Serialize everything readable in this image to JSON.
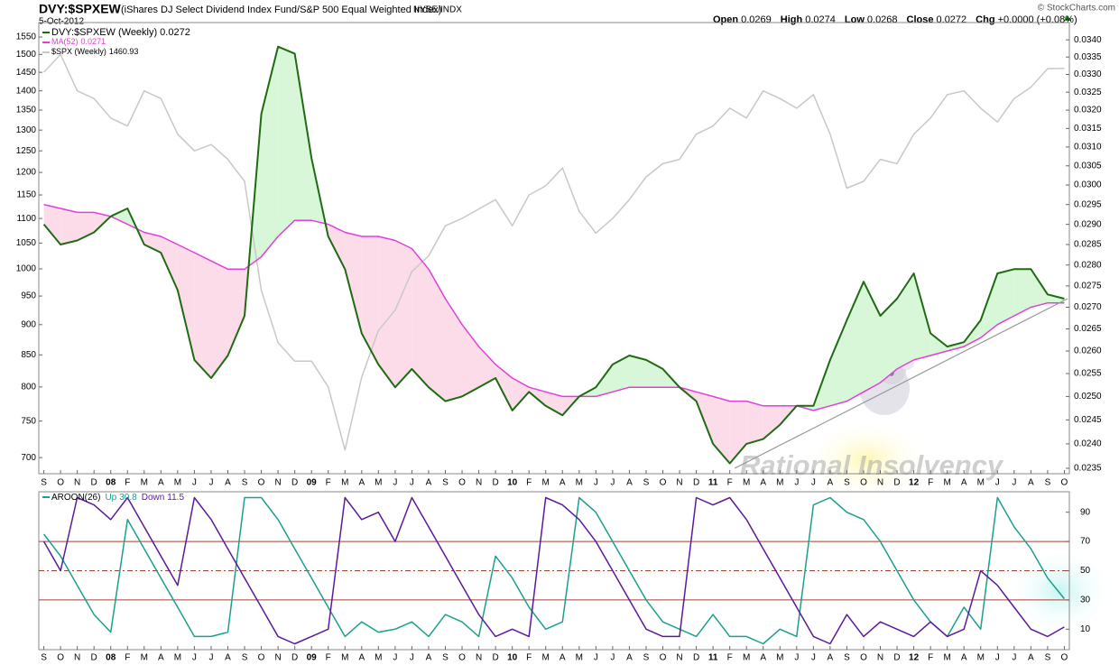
{
  "chart_data": [
    {
      "type": "line",
      "title": "DVY:$SPXEW",
      "subtitle": "(iShares DJ Select Dividend Index Fund/S&P 500 Equal Weighted Index)",
      "exchange": "NYSE/INDX",
      "date": "5-Oct-2012",
      "quote": [
        [
          "Open",
          "0.0269"
        ],
        [
          "High",
          "0.0274"
        ],
        [
          "Low",
          "0.0268"
        ],
        [
          "Close",
          "0.0272"
        ],
        [
          "Chg",
          "+0.0000 (+0.08%)"
        ]
      ],
      "credit": "© StockCharts.com",
      "watermark": "Rational Insolvency",
      "log": true,
      "x": [
        0,
        1,
        2,
        3,
        4,
        5,
        6,
        7,
        8,
        9,
        10,
        11,
        12,
        13,
        14,
        15,
        16,
        17,
        18,
        19,
        20,
        21,
        22,
        23,
        24,
        25,
        26,
        27,
        28,
        29,
        30,
        31,
        32,
        33,
        34,
        35,
        36,
        37,
        38,
        39,
        40,
        41,
        42,
        43,
        44,
        45,
        46,
        47,
        48,
        49,
        50,
        51,
        52,
        53,
        54,
        55,
        56,
        57,
        58,
        59,
        60,
        61
      ],
      "xlim": [
        -0.3,
        61.3
      ],
      "xticks": [
        {
          "value": 0,
          "label": "S"
        },
        {
          "value": 1,
          "label": "O"
        },
        {
          "value": 2,
          "label": "N"
        },
        {
          "value": 3,
          "label": "D"
        },
        {
          "value": 4,
          "label": "08"
        },
        {
          "value": 5,
          "label": "F"
        },
        {
          "value": 6,
          "label": "M"
        },
        {
          "value": 7,
          "label": "A"
        },
        {
          "value": 8,
          "label": "M"
        },
        {
          "value": 9,
          "label": "J"
        },
        {
          "value": 10,
          "label": "J"
        },
        {
          "value": 11,
          "label": "A"
        },
        {
          "value": 12,
          "label": "S"
        },
        {
          "value": 13,
          "label": "O"
        },
        {
          "value": 14,
          "label": "N"
        },
        {
          "value": 15,
          "label": "D"
        },
        {
          "value": 16,
          "label": "09"
        },
        {
          "value": 17,
          "label": "F"
        },
        {
          "value": 18,
          "label": "M"
        },
        {
          "value": 19,
          "label": "A"
        },
        {
          "value": 20,
          "label": "M"
        },
        {
          "value": 21,
          "label": "J"
        },
        {
          "value": 22,
          "label": "J"
        },
        {
          "value": 23,
          "label": "A"
        },
        {
          "value": 24,
          "label": "S"
        },
        {
          "value": 25,
          "label": "O"
        },
        {
          "value": 26,
          "label": "N"
        },
        {
          "value": 27,
          "label": "D"
        },
        {
          "value": 28,
          "label": "10"
        },
        {
          "value": 29,
          "label": "F"
        },
        {
          "value": 30,
          "label": "M"
        },
        {
          "value": 31,
          "label": "A"
        },
        {
          "value": 32,
          "label": "M"
        },
        {
          "value": 33,
          "label": "J"
        },
        {
          "value": 34,
          "label": "J"
        },
        {
          "value": 35,
          "label": "A"
        },
        {
          "value": 36,
          "label": "S"
        },
        {
          "value": 37,
          "label": "O"
        },
        {
          "value": 38,
          "label": "N"
        },
        {
          "value": 39,
          "label": "D"
        },
        {
          "value": 40,
          "label": "11"
        },
        {
          "value": 41,
          "label": "F"
        },
        {
          "value": 42,
          "label": "M"
        },
        {
          "value": 43,
          "label": "A"
        },
        {
          "value": 44,
          "label": "M"
        },
        {
          "value": 45,
          "label": "J"
        },
        {
          "value": 46,
          "label": "J"
        },
        {
          "value": 47,
          "label": "A"
        },
        {
          "value": 48,
          "label": "S"
        },
        {
          "value": 49,
          "label": "O"
        },
        {
          "value": 50,
          "label": "N"
        },
        {
          "value": 51,
          "label": "D"
        },
        {
          "value": 52,
          "label": "12"
        },
        {
          "value": 53,
          "label": "F"
        },
        {
          "value": 54,
          "label": "M"
        },
        {
          "value": 55,
          "label": "A"
        },
        {
          "value": 56,
          "label": "M"
        },
        {
          "value": 57,
          "label": "J"
        },
        {
          "value": 58,
          "label": "J"
        },
        {
          "value": 59,
          "label": "A"
        },
        {
          "value": 60,
          "label": "S"
        },
        {
          "value": 61,
          "label": "O"
        }
      ],
      "ylim": [
        679,
        1593
      ],
      "yticks": [
        700,
        750,
        800,
        850,
        900,
        950,
        1000,
        1050,
        1100,
        1150,
        1200,
        1250,
        1300,
        1350,
        1400,
        1450,
        1500,
        1550
      ],
      "y2lim": [
        0.02339,
        0.03451
      ],
      "y2ticks": [
        {
          "value": 0.0235,
          "label": "0.0235"
        },
        {
          "value": 0.024,
          "label": "0.0240"
        },
        {
          "value": 0.0245,
          "label": "0.0245"
        },
        {
          "value": 0.025,
          "label": "0.0250"
        },
        {
          "value": 0.0255,
          "label": "0.0255"
        },
        {
          "value": 0.026,
          "label": "0.0260"
        },
        {
          "value": 0.0265,
          "label": "0.0265"
        },
        {
          "value": 0.027,
          "label": "0.0270"
        },
        {
          "value": 0.0275,
          "label": "0.0275"
        },
        {
          "value": 0.028,
          "label": "0.0280"
        },
        {
          "value": 0.0285,
          "label": "0.0285"
        },
        {
          "value": 0.029,
          "label": "0.0290"
        },
        {
          "value": 0.0295,
          "label": "0.0295"
        },
        {
          "value": 0.03,
          "label": "0.0300"
        },
        {
          "value": 0.0305,
          "label": "0.0305"
        },
        {
          "value": 0.031,
          "label": "0.0310"
        },
        {
          "value": 0.0315,
          "label": "0.0315"
        },
        {
          "value": 0.032,
          "label": "0.0320"
        },
        {
          "value": 0.0325,
          "label": "0.0325"
        },
        {
          "value": 0.033,
          "label": "0.0330"
        },
        {
          "value": 0.0335,
          "label": "0.0335"
        },
        {
          "value": 0.034,
          "label": "0.0340"
        }
      ],
      "fill": {
        "above": "#d8f6d8",
        "below": "#fddcea"
      },
      "series": [
        {
          "name": "DVY:$SPXEW (Weekly)",
          "last": "0.0272",
          "color": "#1f6b12",
          "axis": "y2",
          "values": [
            0.029,
            0.0285,
            0.0286,
            0.0288,
            0.0292,
            0.0294,
            0.0285,
            0.0283,
            0.0274,
            0.0258,
            0.0254,
            0.0259,
            0.0268,
            0.0319,
            0.0338,
            0.0336,
            0.0307,
            0.0287,
            0.0279,
            0.0264,
            0.0257,
            0.0252,
            0.0256,
            0.0252,
            0.0249,
            0.025,
            0.0252,
            0.0254,
            0.0247,
            0.0251,
            0.0248,
            0.0246,
            0.025,
            0.0252,
            0.0257,
            0.0259,
            0.0258,
            0.0256,
            0.0252,
            0.0249,
            0.024,
            0.0236,
            0.024,
            0.0241,
            0.0244,
            0.0248,
            0.0248,
            0.0258,
            0.0267,
            0.0276,
            0.0268,
            0.0272,
            0.0278,
            0.0264,
            0.0261,
            0.0262,
            0.0267,
            0.0278,
            0.0279,
            0.0279,
            0.0273,
            0.0272
          ]
        },
        {
          "name": "MA(52)",
          "last": "0.0271",
          "color": "#e040d8",
          "axis": "y2",
          "values": [
            0.0295,
            0.0294,
            0.0293,
            0.0293,
            0.0292,
            0.029,
            0.0288,
            0.0287,
            0.0285,
            0.0283,
            0.0281,
            0.0279,
            0.0279,
            0.0282,
            0.0287,
            0.0291,
            0.0291,
            0.029,
            0.0288,
            0.0287,
            0.0287,
            0.0286,
            0.0284,
            0.0279,
            0.0272,
            0.0266,
            0.0261,
            0.0257,
            0.0254,
            0.0252,
            0.0251,
            0.025,
            0.025,
            0.025,
            0.0251,
            0.0252,
            0.0252,
            0.0252,
            0.0252,
            0.0251,
            0.025,
            0.0249,
            0.0249,
            0.0248,
            0.0248,
            0.0248,
            0.0247,
            0.0248,
            0.0249,
            0.0251,
            0.0253,
            0.0256,
            0.0258,
            0.0259,
            0.026,
            0.0261,
            0.0263,
            0.0266,
            0.0268,
            0.027,
            0.0271,
            0.0271
          ]
        },
        {
          "name": "$SPX (Weekly)",
          "last": "1460.93",
          "color": "#c8c8c8",
          "values": [
            1450,
            1500,
            1400,
            1380,
            1330,
            1310,
            1400,
            1380,
            1290,
            1250,
            1265,
            1230,
            1180,
            960,
            870,
            840,
            840,
            800,
            710,
            815,
            890,
            925,
            995,
            1025,
            1085,
            1100,
            1120,
            1140,
            1085,
            1150,
            1170,
            1210,
            1115,
            1070,
            1100,
            1140,
            1190,
            1220,
            1230,
            1290,
            1310,
            1355,
            1330,
            1400,
            1380,
            1355,
            1390,
            1290,
            1165,
            1180,
            1230,
            1220,
            1290,
            1330,
            1390,
            1400,
            1355,
            1320,
            1380,
            1410,
            1460,
            1460.93
          ]
        }
      ],
      "trendline": {
        "x": [
          41.3,
          61.2
        ],
        "values": [
          0.0235,
          0.0272
        ],
        "color": "#999999"
      }
    },
    {
      "type": "line",
      "title": "AROON(26)",
      "x": [
        0,
        1,
        2,
        3,
        4,
        5,
        6,
        7,
        8,
        9,
        10,
        11,
        12,
        13,
        14,
        15,
        16,
        17,
        18,
        19,
        20,
        21,
        22,
        23,
        24,
        25,
        26,
        27,
        28,
        29,
        30,
        31,
        32,
        33,
        34,
        35,
        36,
        37,
        38,
        39,
        40,
        41,
        42,
        43,
        44,
        45,
        46,
        47,
        48,
        49,
        50,
        51,
        52,
        53,
        54,
        55,
        56,
        57,
        58,
        59,
        60,
        61
      ],
      "xlim": [
        -0.3,
        61.3
      ],
      "xticks": [
        {
          "value": 0,
          "label": "S"
        },
        {
          "value": 1,
          "label": "O"
        },
        {
          "value": 2,
          "label": "N"
        },
        {
          "value": 3,
          "label": "D"
        },
        {
          "value": 4,
          "label": "08"
        },
        {
          "value": 5,
          "label": "F"
        },
        {
          "value": 6,
          "label": "M"
        },
        {
          "value": 7,
          "label": "A"
        },
        {
          "value": 8,
          "label": "M"
        },
        {
          "value": 9,
          "label": "J"
        },
        {
          "value": 10,
          "label": "J"
        },
        {
          "value": 11,
          "label": "A"
        },
        {
          "value": 12,
          "label": "S"
        },
        {
          "value": 13,
          "label": "O"
        },
        {
          "value": 14,
          "label": "N"
        },
        {
          "value": 15,
          "label": "D"
        },
        {
          "value": 16,
          "label": "09"
        },
        {
          "value": 17,
          "label": "F"
        },
        {
          "value": 18,
          "label": "M"
        },
        {
          "value": 19,
          "label": "A"
        },
        {
          "value": 20,
          "label": "M"
        },
        {
          "value": 21,
          "label": "J"
        },
        {
          "value": 22,
          "label": "J"
        },
        {
          "value": 23,
          "label": "A"
        },
        {
          "value": 24,
          "label": "S"
        },
        {
          "value": 25,
          "label": "O"
        },
        {
          "value": 26,
          "label": "N"
        },
        {
          "value": 27,
          "label": "D"
        },
        {
          "value": 28,
          "label": "10"
        },
        {
          "value": 29,
          "label": "F"
        },
        {
          "value": 30,
          "label": "M"
        },
        {
          "value": 31,
          "label": "A"
        },
        {
          "value": 32,
          "label": "M"
        },
        {
          "value": 33,
          "label": "J"
        },
        {
          "value": 34,
          "label": "J"
        },
        {
          "value": 35,
          "label": "A"
        },
        {
          "value": 36,
          "label": "S"
        },
        {
          "value": 37,
          "label": "O"
        },
        {
          "value": 38,
          "label": "N"
        },
        {
          "value": 39,
          "label": "D"
        },
        {
          "value": 40,
          "label": "11"
        },
        {
          "value": 41,
          "label": "F"
        },
        {
          "value": 42,
          "label": "M"
        },
        {
          "value": 43,
          "label": "A"
        },
        {
          "value": 44,
          "label": "M"
        },
        {
          "value": 45,
          "label": "J"
        },
        {
          "value": 46,
          "label": "J"
        },
        {
          "value": 47,
          "label": "A"
        },
        {
          "value": 48,
          "label": "S"
        },
        {
          "value": 49,
          "label": "O"
        },
        {
          "value": 50,
          "label": "N"
        },
        {
          "value": 51,
          "label": "D"
        },
        {
          "value": 52,
          "label": "12"
        },
        {
          "value": 53,
          "label": "F"
        },
        {
          "value": 54,
          "label": "M"
        },
        {
          "value": 55,
          "label": "A"
        },
        {
          "value": 56,
          "label": "M"
        },
        {
          "value": 57,
          "label": "J"
        },
        {
          "value": 58,
          "label": "J"
        },
        {
          "value": 59,
          "label": "A"
        },
        {
          "value": 60,
          "label": "S"
        },
        {
          "value": 61,
          "label": "O"
        }
      ],
      "ylim": [
        -4,
        104
      ],
      "yticks": [
        10,
        30,
        50,
        70,
        90
      ],
      "hlines": [
        {
          "value": 30
        },
        {
          "value": 50,
          "dashed": true
        },
        {
          "value": 70
        }
      ],
      "hline_color": "#a04030",
      "series": [
        {
          "name": "Up",
          "last": "30.8",
          "color": "#1aa08c",
          "values": [
            75,
            60,
            40,
            20,
            8,
            85,
            65,
            45,
            25,
            5,
            5,
            8,
            100,
            100,
            85,
            65,
            45,
            25,
            5,
            15,
            8,
            10,
            15,
            5,
            20,
            15,
            5,
            60,
            45,
            25,
            10,
            15,
            100,
            90,
            70,
            50,
            30,
            15,
            10,
            5,
            20,
            5,
            5,
            0,
            10,
            5,
            95,
            100,
            90,
            85,
            70,
            50,
            30,
            15,
            5,
            25,
            10,
            100,
            80,
            65,
            45,
            30.8
          ]
        },
        {
          "name": "Down",
          "last": "11.5",
          "color": "#5a1a9a",
          "values": [
            70,
            50,
            100,
            95,
            85,
            100,
            80,
            60,
            40,
            100,
            85,
            65,
            45,
            25,
            5,
            0,
            5,
            10,
            100,
            85,
            90,
            70,
            100,
            80,
            60,
            40,
            20,
            5,
            10,
            5,
            100,
            95,
            85,
            70,
            50,
            30,
            10,
            5,
            5,
            100,
            95,
            100,
            85,
            65,
            45,
            25,
            5,
            0,
            20,
            5,
            15,
            10,
            5,
            15,
            5,
            10,
            50,
            40,
            25,
            10,
            5,
            11.5
          ]
        }
      ]
    }
  ]
}
